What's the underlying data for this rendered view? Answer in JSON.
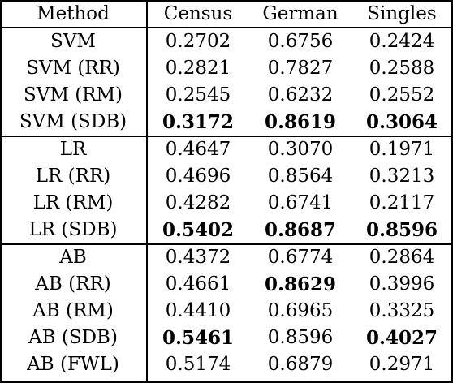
{
  "table": {
    "headers": [
      "Method",
      "Census",
      "German",
      "Singles"
    ],
    "groups": [
      {
        "rows": [
          {
            "method": "SVM",
            "values": [
              "0.2702",
              "0.6756",
              "0.2424"
            ],
            "bold": [
              false,
              false,
              false
            ]
          },
          {
            "method": "SVM (RR)",
            "values": [
              "0.2821",
              "0.7827",
              "0.2588"
            ],
            "bold": [
              false,
              false,
              false
            ]
          },
          {
            "method": "SVM (RM)",
            "values": [
              "0.2545",
              "0.6232",
              "0.2552"
            ],
            "bold": [
              false,
              false,
              false
            ]
          },
          {
            "method": "SVM (SDB)",
            "values": [
              "0.3172",
              "0.8619",
              "0.3064"
            ],
            "bold": [
              true,
              true,
              true
            ]
          }
        ]
      },
      {
        "rows": [
          {
            "method": "LR",
            "values": [
              "0.4647",
              "0.3070",
              "0.1971"
            ],
            "bold": [
              false,
              false,
              false
            ]
          },
          {
            "method": "LR (RR)",
            "values": [
              "0.4696",
              "0.8564",
              "0.3213"
            ],
            "bold": [
              false,
              false,
              false
            ]
          },
          {
            "method": "LR (RM)",
            "values": [
              "0.4282",
              "0.6741",
              "0.2117"
            ],
            "bold": [
              false,
              false,
              false
            ]
          },
          {
            "method": "LR (SDB)",
            "values": [
              "0.5402",
              "0.8687",
              "0.8596"
            ],
            "bold": [
              true,
              true,
              true
            ]
          }
        ]
      },
      {
        "rows": [
          {
            "method": "AB",
            "values": [
              "0.4372",
              "0.6774",
              "0.2864"
            ],
            "bold": [
              false,
              false,
              false
            ]
          },
          {
            "method": "AB (RR)",
            "values": [
              "0.4661",
              "0.8629",
              "0.3996"
            ],
            "bold": [
              false,
              true,
              false
            ]
          },
          {
            "method": "AB (RM)",
            "values": [
              "0.4410",
              "0.6965",
              "0.3325"
            ],
            "bold": [
              false,
              false,
              false
            ]
          },
          {
            "method": "AB (SDB)",
            "values": [
              "0.5461",
              "0.8596",
              "0.4027"
            ],
            "bold": [
              true,
              false,
              true
            ]
          },
          {
            "method": "AB (FWL)",
            "values": [
              "0.5174",
              "0.6879",
              "0.2971"
            ],
            "bold": [
              false,
              false,
              false
            ]
          }
        ]
      }
    ]
  }
}
